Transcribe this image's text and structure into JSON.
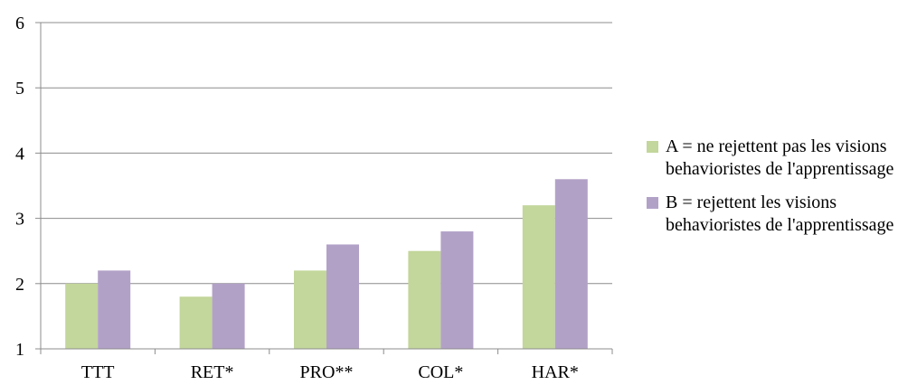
{
  "chart_data": {
    "type": "bar",
    "categories": [
      "TTT",
      "RET*",
      "PRO**",
      "COL*",
      "HAR*"
    ],
    "series": [
      {
        "name": "A = ne rejettent pas les visions behavioristes de l'apprentissage",
        "values": [
          2.0,
          1.8,
          2.2,
          2.5,
          3.2
        ],
        "color": "#c3d69b"
      },
      {
        "name": "B = rejettent les visions behavioristes de l'apprentissage",
        "values": [
          2.2,
          2.0,
          2.6,
          2.8,
          3.6
        ],
        "color": "#b2a1c7"
      }
    ],
    "ylim": [
      1,
      6
    ],
    "yticks": [
      1,
      2,
      3,
      4,
      5,
      6
    ],
    "grid": true,
    "legend_position": "right",
    "title": "",
    "xlabel": "",
    "ylabel": ""
  }
}
